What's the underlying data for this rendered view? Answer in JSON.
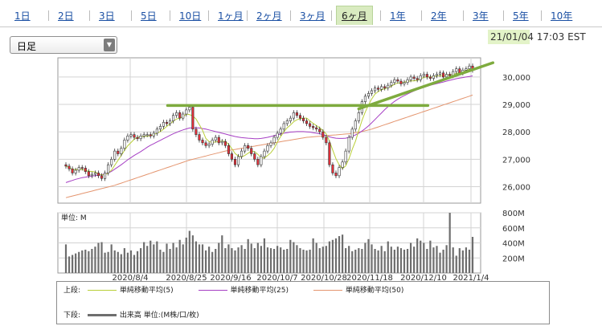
{
  "tabs": [
    "1日",
    "2日",
    "3日",
    "5日",
    "10日",
    "1ヶ月",
    "2ヶ月",
    "3ヶ月",
    "6ヶ月",
    "1年",
    "2年",
    "3年",
    "5年",
    "10年"
  ],
  "active_tab_index": 8,
  "period_select": {
    "value": "日足"
  },
  "datetime": {
    "date": "21/01/04",
    "time": "17:03 EST"
  },
  "colors": {
    "candle_up": "#ffffff",
    "candle_down": "#e8303a",
    "ma5": "#b9cf38",
    "ma25": "#a63fc4",
    "ma50": "#e4956f",
    "trendline": "#7eab3e",
    "volume": "#6e6e6e",
    "accent_tab": "#d9ebc0"
  },
  "volume_panel": {
    "unit_label": "単位: M"
  },
  "legend": {
    "upper_label": "上段:",
    "lower_label": "下段:",
    "ma5_label": "単純移動平均(5)",
    "ma25_label": "単純移動平均(25)",
    "ma50_label": "単純移動平均(50)",
    "volume_label": "出来高 単位:(M株/口/枚)"
  },
  "chart_data": {
    "type": "candlestick",
    "x_tick_labels": [
      "2020/8/4",
      "2020/8/25",
      "2020/9/16",
      "2020/10/7",
      "2020/10/28",
      "2020/11/18",
      "2020/12/10",
      "2021/1/4"
    ],
    "price_axis": {
      "ticks": [
        26000,
        27000,
        28000,
        29000,
        30000
      ],
      "tick_labels": [
        "26,000",
        "27,000",
        "28,000",
        "29,000",
        "30,000"
      ],
      "ylim": [
        25400,
        30700
      ]
    },
    "volume_axis": {
      "ticks": [
        200,
        400,
        600,
        800
      ],
      "tick_labels": [
        "200M",
        "400M",
        "600M",
        "800M"
      ],
      "ylim": [
        0,
        800
      ]
    },
    "grid": true,
    "close": [
      26750,
      26650,
      26500,
      26600,
      26700,
      26680,
      26550,
      26400,
      26450,
      26500,
      26400,
      26300,
      26500,
      26800,
      27000,
      27300,
      27200,
      27400,
      27700,
      27850,
      27900,
      27800,
      27750,
      27850,
      27900,
      27900,
      27850,
      27950,
      28100,
      28200,
      28350,
      28300,
      28400,
      28600,
      28700,
      28500,
      28650,
      28800,
      28900,
      28100,
      27900,
      27700,
      27600,
      27500,
      27550,
      27700,
      27800,
      27600,
      27650,
      27500,
      27200,
      27000,
      26800,
      27100,
      27300,
      27500,
      27400,
      27200,
      27000,
      26800,
      27100,
      27300,
      27500,
      27600,
      27800,
      27950,
      28100,
      28300,
      28400,
      28500,
      28700,
      28600,
      28500,
      28400,
      28300,
      28200,
      28150,
      28100,
      28000,
      27800,
      27600,
      26800,
      26500,
      26400,
      26700,
      26900,
      27300,
      27800,
      28100,
      28400,
      28700,
      29100,
      29300,
      29400,
      29500,
      29600,
      29550,
      29650,
      29600,
      29700,
      29800,
      29900,
      29850,
      29750,
      29800,
      29900,
      30000,
      29950,
      29900,
      30050,
      30100,
      30000,
      29950,
      30050,
      30100,
      30150,
      30000,
      30100,
      30050,
      30200,
      30300,
      30150,
      30250,
      30300,
      30400,
      30250
    ],
    "volume": [
      380,
      220,
      240,
      260,
      280,
      300,
      310,
      290,
      320,
      350,
      400,
      410,
      270,
      280,
      380,
      300,
      280,
      250,
      330,
      270,
      300,
      240,
      290,
      330,
      410,
      360,
      430,
      380,
      420,
      310,
      280,
      390,
      320,
      400,
      340,
      440,
      380,
      470,
      560,
      500,
      420,
      380,
      380,
      300,
      350,
      280,
      320,
      400,
      500,
      330,
      380,
      330,
      300,
      340,
      370,
      320,
      450,
      390,
      330,
      400,
      360,
      460,
      340,
      330,
      320,
      360,
      340,
      310,
      320,
      440,
      410,
      370,
      330,
      310,
      300,
      310,
      460,
      400,
      330,
      350,
      360,
      420,
      440,
      460,
      490,
      510,
      330,
      360,
      290,
      310,
      330,
      320,
      400,
      450,
      380,
      320,
      300,
      360,
      290,
      420,
      350,
      310,
      350,
      330,
      310,
      320,
      400,
      350,
      460,
      430,
      400,
      320,
      430,
      340,
      360,
      270,
      310,
      370,
      800,
      340,
      230,
      330,
      300,
      340,
      310,
      480
    ],
    "ma5": [
      26750,
      26700,
      26633,
      26625,
      26640,
      26626,
      26596,
      26566,
      26556,
      26536,
      26476,
      26430,
      26430,
      26500,
      26600,
      26780,
      26960,
      27140,
      27320,
      27490,
      27610,
      27730,
      27800,
      27820,
      27840,
      27840,
      27860,
      27900,
      27950,
      28010,
      28100,
      28200,
      28290,
      28390,
      28470,
      28500,
      28550,
      28650,
      28630,
      28580,
      28470,
      28260,
      28060,
      27760,
      27650,
      27610,
      27630,
      27650,
      27660,
      27650,
      27550,
      27390,
      27210,
      27120,
      27080,
      27140,
      27220,
      27300,
      27280,
      27180,
      27060,
      27040,
      27140,
      27240,
      27400,
      27630,
      27830,
      28000,
      28150,
      28250,
      28370,
      28440,
      28480,
      28500,
      28500,
      28400,
      28310,
      28230,
      28150,
      28050,
      27930,
      27660,
      27340,
      27020,
      26800,
      26660,
      26760,
      27020,
      27360,
      27660,
      28040,
      28420,
      28720,
      28980,
      29200,
      29380,
      29470,
      29540,
      29570,
      29620,
      29660,
      29740,
      29780,
      29780,
      29810,
      29840,
      29860,
      29860,
      29880,
      29920,
      29990,
      30000,
      30000,
      30010,
      30040,
      30050,
      30050,
      30060,
      30080,
      30100,
      30130,
      30160,
      30180,
      30240,
      30280,
      30270
    ],
    "ma25": [
      26150,
      26190,
      26230,
      26270,
      26300,
      26330,
      26350,
      26370,
      26390,
      26400,
      26420,
      26440,
      26460,
      26500,
      26560,
      26640,
      26720,
      26800,
      26890,
      26980,
      27060,
      27140,
      27210,
      27280,
      27360,
      27440,
      27510,
      27570,
      27630,
      27690,
      27750,
      27810,
      27870,
      27930,
      27980,
      28030,
      28070,
      28110,
      28140,
      28150,
      28150,
      28140,
      28120,
      28100,
      28070,
      28040,
      28010,
      27980,
      27950,
      27920,
      27890,
      27860,
      27830,
      27810,
      27790,
      27780,
      27770,
      27760,
      27750,
      27750,
      27760,
      27780,
      27800,
      27830,
      27860,
      27890,
      27920,
      27950,
      27970,
      27990,
      28000,
      28010,
      28010,
      28010,
      28000,
      27990,
      27970,
      27950,
      27930,
      27900,
      27860,
      27820,
      27790,
      27770,
      27760,
      27760,
      27770,
      27800,
      27840,
      27890,
      27950,
      28030,
      28120,
      28220,
      28330,
      28450,
      28570,
      28690,
      28810,
      28920,
      29020,
      29110,
      29190,
      29260,
      29320,
      29380,
      29440,
      29490,
      29540,
      29580,
      29620,
      29660,
      29700,
      29730,
      29760,
      29790,
      29820,
      29850,
      29880,
      29910,
      29940,
      29960,
      29980,
      30000,
      30020,
      30040
    ],
    "ma50": [
      25600,
      25630,
      25660,
      25690,
      25720,
      25750,
      25780,
      25810,
      25840,
      25870,
      25900,
      25930,
      25960,
      25990,
      26020,
      26050,
      26090,
      26130,
      26170,
      26210,
      26250,
      26290,
      26330,
      26370,
      26410,
      26450,
      26490,
      26530,
      26570,
      26610,
      26650,
      26690,
      26730,
      26770,
      26810,
      26850,
      26890,
      26930,
      26970,
      27000,
      27030,
      27060,
      27090,
      27120,
      27150,
      27180,
      27210,
      27240,
      27270,
      27300,
      27320,
      27340,
      27360,
      27380,
      27400,
      27420,
      27440,
      27460,
      27480,
      27500,
      27520,
      27540,
      27560,
      27580,
      27600,
      27620,
      27640,
      27660,
      27680,
      27700,
      27720,
      27740,
      27760,
      27780,
      27800,
      27810,
      27820,
      27830,
      27840,
      27850,
      27860,
      27870,
      27880,
      27890,
      27900,
      27910,
      27920,
      27930,
      27950,
      27970,
      27990,
      28010,
      28040,
      28070,
      28100,
      28140,
      28180,
      28220,
      28260,
      28300,
      28340,
      28380,
      28420,
      28460,
      28500,
      28540,
      28580,
      28620,
      28660,
      28700,
      28740,
      28780,
      28820,
      28860,
      28900,
      28940,
      28980,
      29020,
      29060,
      29100,
      29140,
      29180,
      29220,
      29260,
      29300,
      29340
    ],
    "trendlines": [
      {
        "name": "horizontal",
        "points": [
          [
            0.25,
            28960
          ],
          [
            0.89,
            28960
          ]
        ]
      },
      {
        "name": "rising",
        "points": [
          [
            0.72,
            28840
          ],
          [
            1.05,
            30520
          ]
        ]
      }
    ]
  }
}
